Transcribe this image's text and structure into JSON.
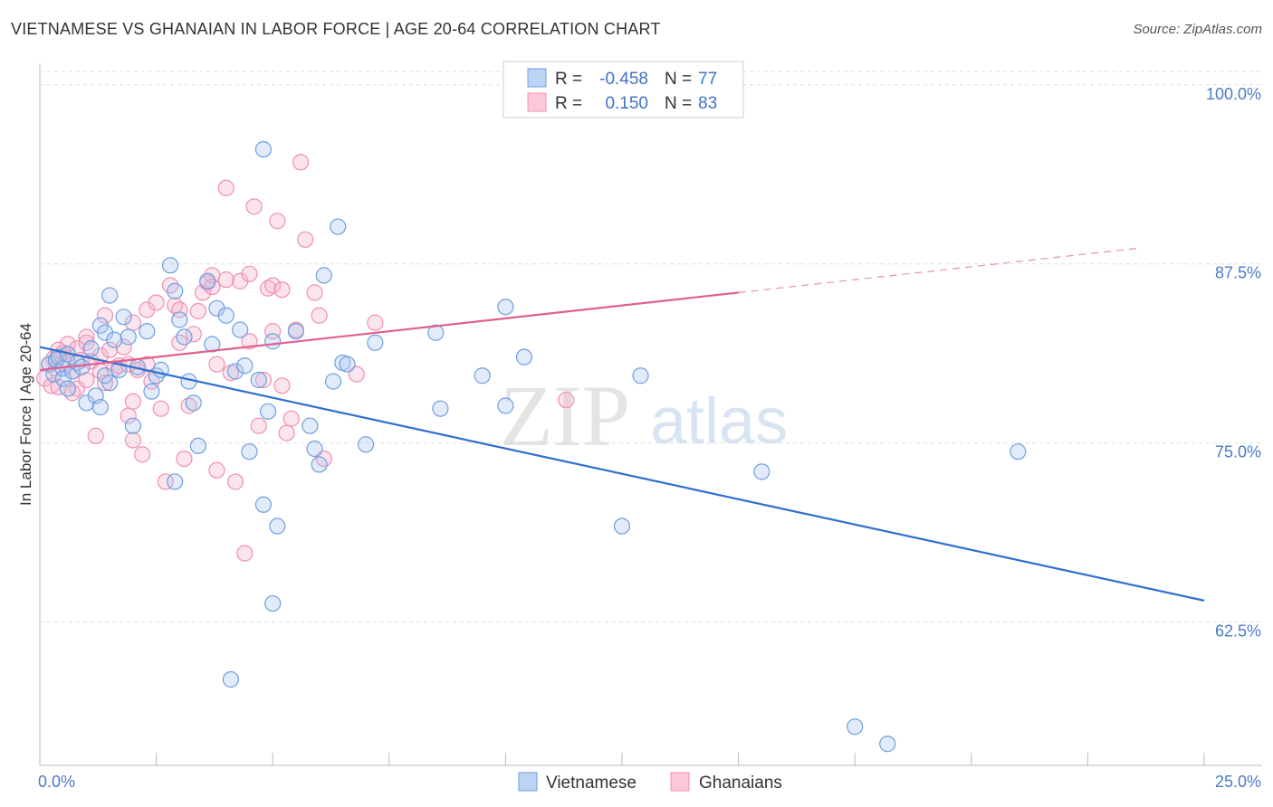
{
  "header": {
    "title": "VIETNAMESE VS GHANAIAN IN LABOR FORCE | AGE 20-64 CORRELATION CHART",
    "source": "Source: ZipAtlas.com"
  },
  "watermark": {
    "zip": "ZIP",
    "atlas": "atlas"
  },
  "legend": {
    "rows": [
      {
        "r_label": "R =",
        "r_value": "-0.458",
        "n_label": "N =",
        "n_value": "77"
      },
      {
        "r_label": "R =",
        "r_value": "0.150",
        "n_label": "N =",
        "n_value": "83"
      }
    ]
  },
  "bottom_legend": [
    "Vietnamese",
    "Ghanaians"
  ],
  "chart_data": {
    "type": "scatter",
    "title": "VIETNAMESE VS GHANAIAN IN LABOR FORCE | AGE 20-64 CORRELATION CHART",
    "xlabel": "",
    "ylabel": "In Labor Force | Age 20-64",
    "xlim": [
      0,
      25
    ],
    "ylim": [
      52.5,
      101.5
    ],
    "x_tick_labels": [
      "0.0%",
      "25.0%"
    ],
    "y_ticks": [
      62.5,
      75.0,
      87.5,
      100.0
    ],
    "y_tick_labels": [
      "62.5%",
      "75.0%",
      "87.5%",
      "100.0%"
    ],
    "colors": {
      "Vietnamese": "#6f9fe0",
      "Ghanaians": "#f08fb0",
      "line_blue": "#2f6fd0",
      "line_pink": "#e0608f"
    },
    "series": [
      {
        "name": "Vietnamese",
        "r": -0.458,
        "n": 77,
        "trend": {
          "x0": 0.0,
          "y0": 81.7,
          "x1": 25.0,
          "y1": 64.0
        },
        "points": [
          [
            0.2,
            80.5
          ],
          [
            0.3,
            79.8
          ],
          [
            0.35,
            80.8
          ],
          [
            0.4,
            81.0
          ],
          [
            0.5,
            80.2
          ],
          [
            0.5,
            79.5
          ],
          [
            0.6,
            78.8
          ],
          [
            0.6,
            81.2
          ],
          [
            0.7,
            80.0
          ],
          [
            0.8,
            80.6
          ],
          [
            0.9,
            80.3
          ],
          [
            1.0,
            77.8
          ],
          [
            1.1,
            81.6
          ],
          [
            1.2,
            78.3
          ],
          [
            1.3,
            83.2
          ],
          [
            1.3,
            77.5
          ],
          [
            1.4,
            82.7
          ],
          [
            1.5,
            79.2
          ],
          [
            1.5,
            85.3
          ],
          [
            1.6,
            82.2
          ],
          [
            1.7,
            80.1
          ],
          [
            1.8,
            83.8
          ],
          [
            1.9,
            82.4
          ],
          [
            2.0,
            76.2
          ],
          [
            2.1,
            80.3
          ],
          [
            2.3,
            82.8
          ],
          [
            2.4,
            78.6
          ],
          [
            2.5,
            79.7
          ],
          [
            2.6,
            80.1
          ],
          [
            2.8,
            87.4
          ],
          [
            2.9,
            85.6
          ],
          [
            3.0,
            83.6
          ],
          [
            3.1,
            82.4
          ],
          [
            3.2,
            79.3
          ],
          [
            3.3,
            77.8
          ],
          [
            3.4,
            74.8
          ],
          [
            3.6,
            86.3
          ],
          [
            3.7,
            81.9
          ],
          [
            3.8,
            84.4
          ],
          [
            4.0,
            83.9
          ],
          [
            4.2,
            80.0
          ],
          [
            4.3,
            82.9
          ],
          [
            4.4,
            80.4
          ],
          [
            4.5,
            74.4
          ],
          [
            4.7,
            79.4
          ],
          [
            4.8,
            70.7
          ],
          [
            4.9,
            77.2
          ],
          [
            5.0,
            82.1
          ],
          [
            5.1,
            69.2
          ],
          [
            5.0,
            63.8
          ],
          [
            5.5,
            82.8
          ],
          [
            5.8,
            76.2
          ],
          [
            5.9,
            74.6
          ],
          [
            6.0,
            73.5
          ],
          [
            6.1,
            86.7
          ],
          [
            6.3,
            79.3
          ],
          [
            6.4,
            90.1
          ],
          [
            6.5,
            80.6
          ],
          [
            6.6,
            80.5
          ],
          [
            7.0,
            74.9
          ],
          [
            7.2,
            82.0
          ],
          [
            8.5,
            82.7
          ],
          [
            8.6,
            77.4
          ],
          [
            9.5,
            79.7
          ],
          [
            10.0,
            84.5
          ],
          [
            10.0,
            77.6
          ],
          [
            10.4,
            81.0
          ],
          [
            12.5,
            69.2
          ],
          [
            12.9,
            79.7
          ],
          [
            15.5,
            73.0
          ],
          [
            17.5,
            55.2
          ],
          [
            18.2,
            54.0
          ],
          [
            21.0,
            74.4
          ],
          [
            4.1,
            58.5
          ],
          [
            4.8,
            95.5
          ],
          [
            2.9,
            72.3
          ],
          [
            1.4,
            79.7
          ]
        ]
      },
      {
        "name": "Ghanaians",
        "r": 0.15,
        "n": 83,
        "trend": {
          "x0": 0.0,
          "y0": 80.1,
          "x1": 15.0,
          "y1": 85.5,
          "dashed_to_x": 23.6,
          "dashed_to_y": 88.6
        },
        "points": [
          [
            0.1,
            79.5
          ],
          [
            0.2,
            80.5
          ],
          [
            0.25,
            79.0
          ],
          [
            0.3,
            80.9
          ],
          [
            0.35,
            80.2
          ],
          [
            0.4,
            78.9
          ],
          [
            0.5,
            81.3
          ],
          [
            0.6,
            81.9
          ],
          [
            0.6,
            80.6
          ],
          [
            0.7,
            80.0
          ],
          [
            0.8,
            81.6
          ],
          [
            0.8,
            78.8
          ],
          [
            0.9,
            80.8
          ],
          [
            1.0,
            82.4
          ],
          [
            1.0,
            79.4
          ],
          [
            1.1,
            80.7
          ],
          [
            1.2,
            75.5
          ],
          [
            1.3,
            81.1
          ],
          [
            1.4,
            83.9
          ],
          [
            1.4,
            79.2
          ],
          [
            1.5,
            81.5
          ],
          [
            1.6,
            80.2
          ],
          [
            1.7,
            80.4
          ],
          [
            1.8,
            81.7
          ],
          [
            1.9,
            80.5
          ],
          [
            1.9,
            76.9
          ],
          [
            2.0,
            83.4
          ],
          [
            2.0,
            77.9
          ],
          [
            2.1,
            80.1
          ],
          [
            2.2,
            74.2
          ],
          [
            2.3,
            84.3
          ],
          [
            2.4,
            79.3
          ],
          [
            2.5,
            84.8
          ],
          [
            2.6,
            77.4
          ],
          [
            2.7,
            72.3
          ],
          [
            2.8,
            86.0
          ],
          [
            2.9,
            84.6
          ],
          [
            3.0,
            84.3
          ],
          [
            3.1,
            73.9
          ],
          [
            3.2,
            77.6
          ],
          [
            3.3,
            82.6
          ],
          [
            3.4,
            84.2
          ],
          [
            3.5,
            85.5
          ],
          [
            3.6,
            86.2
          ],
          [
            3.7,
            86.7
          ],
          [
            3.8,
            80.5
          ],
          [
            3.8,
            73.1
          ],
          [
            4.0,
            86.4
          ],
          [
            4.1,
            79.9
          ],
          [
            4.2,
            72.3
          ],
          [
            4.3,
            86.3
          ],
          [
            4.4,
            67.3
          ],
          [
            4.5,
            86.8
          ],
          [
            4.6,
            91.5
          ],
          [
            4.7,
            76.2
          ],
          [
            4.8,
            79.4
          ],
          [
            4.9,
            85.8
          ],
          [
            5.0,
            86.0
          ],
          [
            5.1,
            90.5
          ],
          [
            5.2,
            79.0
          ],
          [
            5.3,
            75.7
          ],
          [
            5.4,
            76.7
          ],
          [
            5.5,
            82.9
          ],
          [
            5.6,
            94.6
          ],
          [
            5.7,
            89.2
          ],
          [
            5.9,
            85.5
          ],
          [
            6.0,
            83.9
          ],
          [
            6.1,
            73.9
          ],
          [
            6.8,
            79.8
          ],
          [
            7.2,
            83.4
          ],
          [
            11.3,
            78.0
          ],
          [
            5.0,
            82.8
          ],
          [
            4.5,
            82.1
          ],
          [
            3.7,
            85.9
          ],
          [
            2.0,
            75.2
          ],
          [
            1.0,
            82.0
          ],
          [
            0.4,
            81.5
          ],
          [
            0.7,
            78.5
          ],
          [
            1.3,
            80.0
          ],
          [
            3.0,
            82.0
          ],
          [
            4.0,
            92.8
          ],
          [
            5.2,
            85.7
          ],
          [
            2.3,
            80.5
          ]
        ]
      }
    ]
  }
}
